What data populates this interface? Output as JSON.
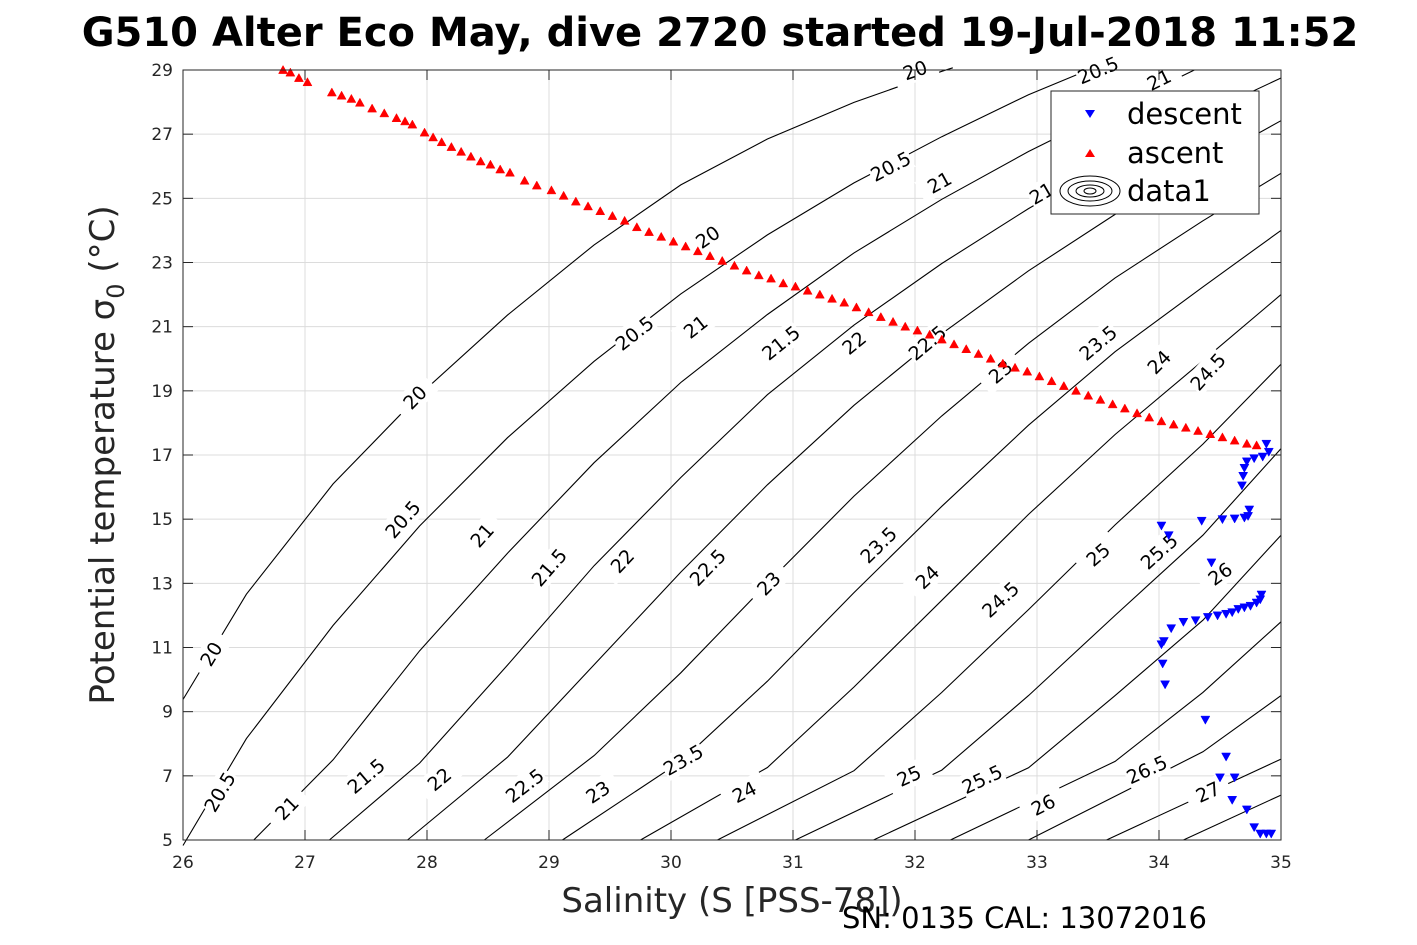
{
  "chart_data": {
    "type": "scatter",
    "title": "G510 Alter Eco May, dive 2720 started 19-Jul-2018 11:52",
    "xlabel": "Salinity (S [PSS-78])",
    "ylabel": "Potential temperature σ",
    "ylabel_subscript": "0",
    "ylabel_unit": " (°C)",
    "xlim": [
      26,
      35
    ],
    "ylim": [
      5,
      29
    ],
    "x_ticks": [
      26,
      27,
      28,
      29,
      30,
      31,
      32,
      33,
      34,
      35
    ],
    "y_ticks": [
      5,
      7,
      9,
      11,
      13,
      15,
      17,
      19,
      21,
      23,
      25,
      27,
      29
    ],
    "grid": true,
    "legend_position": "top-right",
    "legend": [
      "descent",
      "ascent",
      "data1"
    ],
    "series": [
      {
        "name": "descent",
        "marker": "triangle-down",
        "color": "#0000ff",
        "points": [
          [
            34.88,
            17.35
          ],
          [
            34.9,
            17.1
          ],
          [
            34.85,
            16.95
          ],
          [
            34.78,
            16.9
          ],
          [
            34.72,
            16.8
          ],
          [
            34.7,
            16.6
          ],
          [
            34.69,
            16.35
          ],
          [
            34.68,
            16.05
          ],
          [
            34.74,
            15.3
          ],
          [
            34.73,
            15.1
          ],
          [
            34.7,
            15.05
          ],
          [
            34.62,
            15.02
          ],
          [
            34.52,
            15.0
          ],
          [
            34.35,
            14.95
          ],
          [
            34.02,
            14.8
          ],
          [
            34.08,
            14.5
          ],
          [
            34.43,
            13.65
          ],
          [
            34.84,
            12.65
          ],
          [
            34.83,
            12.5
          ],
          [
            34.8,
            12.4
          ],
          [
            34.75,
            12.3
          ],
          [
            34.7,
            12.25
          ],
          [
            34.65,
            12.2
          ],
          [
            34.6,
            12.1
          ],
          [
            34.55,
            12.05
          ],
          [
            34.48,
            12.0
          ],
          [
            34.4,
            11.95
          ],
          [
            34.3,
            11.85
          ],
          [
            34.2,
            11.8
          ],
          [
            34.1,
            11.6
          ],
          [
            34.04,
            11.2
          ],
          [
            34.02,
            11.1
          ],
          [
            34.03,
            10.5
          ],
          [
            34.05,
            9.85
          ],
          [
            34.38,
            8.75
          ],
          [
            34.55,
            7.6
          ],
          [
            34.5,
            6.95
          ],
          [
            34.62,
            6.95
          ],
          [
            34.6,
            6.25
          ],
          [
            34.72,
            5.95
          ],
          [
            34.78,
            5.4
          ],
          [
            34.83,
            5.2
          ],
          [
            34.88,
            5.2
          ],
          [
            34.92,
            5.2
          ]
        ]
      },
      {
        "name": "ascent",
        "marker": "triangle-up",
        "color": "#ff0000",
        "points": [
          [
            26.82,
            29.0
          ],
          [
            26.88,
            28.92
          ],
          [
            26.95,
            28.75
          ],
          [
            27.02,
            28.62
          ],
          [
            27.22,
            28.3
          ],
          [
            27.3,
            28.2
          ],
          [
            27.38,
            28.1
          ],
          [
            27.45,
            27.98
          ],
          [
            27.55,
            27.8
          ],
          [
            27.65,
            27.65
          ],
          [
            27.75,
            27.5
          ],
          [
            27.82,
            27.4
          ],
          [
            27.88,
            27.3
          ],
          [
            27.98,
            27.05
          ],
          [
            28.05,
            26.9
          ],
          [
            28.12,
            26.75
          ],
          [
            28.2,
            26.6
          ],
          [
            28.28,
            26.45
          ],
          [
            28.36,
            26.3
          ],
          [
            28.44,
            26.15
          ],
          [
            28.52,
            26.05
          ],
          [
            28.6,
            25.9
          ],
          [
            28.68,
            25.8
          ],
          [
            28.8,
            25.55
          ],
          [
            28.9,
            25.4
          ],
          [
            29.02,
            25.25
          ],
          [
            29.12,
            25.08
          ],
          [
            29.22,
            24.9
          ],
          [
            29.32,
            24.75
          ],
          [
            29.42,
            24.6
          ],
          [
            29.52,
            24.45
          ],
          [
            29.62,
            24.3
          ],
          [
            29.72,
            24.1
          ],
          [
            29.82,
            23.95
          ],
          [
            29.92,
            23.8
          ],
          [
            30.02,
            23.65
          ],
          [
            30.12,
            23.5
          ],
          [
            30.22,
            23.35
          ],
          [
            30.32,
            23.2
          ],
          [
            30.42,
            23.05
          ],
          [
            30.52,
            22.9
          ],
          [
            30.62,
            22.75
          ],
          [
            30.72,
            22.6
          ],
          [
            30.82,
            22.5
          ],
          [
            30.92,
            22.35
          ],
          [
            31.02,
            22.25
          ],
          [
            31.12,
            22.12
          ],
          [
            31.22,
            22.0
          ],
          [
            31.32,
            21.87
          ],
          [
            31.42,
            21.75
          ],
          [
            31.52,
            21.6
          ],
          [
            31.62,
            21.45
          ],
          [
            31.72,
            21.3
          ],
          [
            31.82,
            21.15
          ],
          [
            31.92,
            21.0
          ],
          [
            32.02,
            20.88
          ],
          [
            32.12,
            20.75
          ],
          [
            32.22,
            20.6
          ],
          [
            32.32,
            20.45
          ],
          [
            32.42,
            20.3
          ],
          [
            32.52,
            20.15
          ],
          [
            32.62,
            20.0
          ],
          [
            32.72,
            19.85
          ],
          [
            32.82,
            19.72
          ],
          [
            32.92,
            19.6
          ],
          [
            33.02,
            19.45
          ],
          [
            33.12,
            19.3
          ],
          [
            33.22,
            19.15
          ],
          [
            33.32,
            19.0
          ],
          [
            33.42,
            18.85
          ],
          [
            33.52,
            18.72
          ],
          [
            33.62,
            18.58
          ],
          [
            33.72,
            18.45
          ],
          [
            33.82,
            18.3
          ],
          [
            33.92,
            18.17
          ],
          [
            34.02,
            18.05
          ],
          [
            34.12,
            17.95
          ],
          [
            34.22,
            17.85
          ],
          [
            34.32,
            17.75
          ],
          [
            34.42,
            17.65
          ],
          [
            34.52,
            17.55
          ],
          [
            34.62,
            17.45
          ],
          [
            34.72,
            17.35
          ],
          [
            34.8,
            17.3
          ]
        ]
      }
    ],
    "contours": [
      {
        "level": 20,
        "points": [
          [
            26.0,
            9.38
          ],
          [
            26.52,
            12.66
          ],
          [
            27.23,
            16.1
          ],
          [
            27.94,
            18.88
          ],
          [
            28.66,
            21.36
          ],
          [
            29.37,
            23.55
          ],
          [
            30.08,
            25.42
          ],
          [
            30.79,
            26.85
          ],
          [
            31.5,
            27.99
          ],
          [
            32.22,
            28.96
          ],
          [
            32.31,
            29.07
          ]
        ],
        "label_xs": [
          26.23,
          27.9,
          30.3,
          32.0
        ],
        "label_ys": [
          10.8,
          18.8,
          23.8,
          29.0
        ]
      },
      {
        "level": 20.5,
        "points": [
          [
            26.0,
            4.83
          ],
          [
            26.52,
            8.16
          ],
          [
            27.23,
            11.69
          ],
          [
            27.94,
            14.79
          ],
          [
            28.66,
            17.54
          ],
          [
            29.37,
            19.92
          ],
          [
            30.08,
            22.02
          ],
          [
            30.79,
            23.86
          ],
          [
            31.5,
            25.48
          ],
          [
            32.22,
            26.92
          ],
          [
            32.93,
            28.23
          ],
          [
            33.42,
            29.0
          ]
        ],
        "label_xs": [
          26.3,
          27.8,
          29.7,
          31.8,
          33.5
        ],
        "label_ys": [
          6.5,
          15.0,
          20.8,
          26.0,
          29.0
        ]
      },
      {
        "level": 21,
        "points": [
          [
            26.58,
            5.0
          ],
          [
            27.23,
            7.5
          ],
          [
            27.94,
            10.9
          ],
          [
            28.66,
            13.94
          ],
          [
            29.37,
            16.76
          ],
          [
            30.08,
            19.26
          ],
          [
            30.79,
            21.38
          ],
          [
            31.5,
            23.3
          ],
          [
            32.22,
            24.97
          ],
          [
            32.93,
            26.46
          ],
          [
            33.64,
            27.8
          ],
          [
            34.29,
            29.0
          ]
        ],
        "label_xs": [
          26.85,
          28.45,
          30.2,
          32.2,
          34.0
        ],
        "label_ys": [
          6.0,
          14.5,
          21.0,
          25.5,
          28.7
        ]
      },
      {
        "level": 21.5,
        "points": [
          [
            27.2,
            5.0
          ],
          [
            27.94,
            7.4
          ],
          [
            28.66,
            10.45
          ],
          [
            29.37,
            13.55
          ],
          [
            30.08,
            16.3
          ],
          [
            30.79,
            18.88
          ],
          [
            31.5,
            21.05
          ],
          [
            32.22,
            22.97
          ],
          [
            32.93,
            24.68
          ],
          [
            33.64,
            26.24
          ],
          [
            34.36,
            27.61
          ],
          [
            35.0,
            28.75
          ]
        ],
        "label_xs": [
          27.5,
          29.0,
          30.9,
          33.1
        ],
        "label_ys": [
          7.0,
          13.5,
          20.5,
          25.3
        ]
      },
      {
        "level": 22,
        "points": [
          [
            27.84,
            5.0
          ],
          [
            28.66,
            7.58
          ],
          [
            29.37,
            10.46
          ],
          [
            30.08,
            13.35
          ],
          [
            30.79,
            16.07
          ],
          [
            31.5,
            18.55
          ],
          [
            32.22,
            20.78
          ],
          [
            32.93,
            22.74
          ],
          [
            33.64,
            24.5
          ],
          [
            34.36,
            26.07
          ],
          [
            35.0,
            27.42
          ]
        ],
        "label_xs": [
          28.1,
          29.6,
          31.5
        ],
        "label_ys": [
          6.9,
          13.7,
          20.5
        ]
      },
      {
        "level": 22.5,
        "points": [
          [
            28.47,
            5.0
          ],
          [
            29.37,
            7.63
          ],
          [
            30.08,
            10.21
          ],
          [
            30.79,
            13.0
          ],
          [
            31.5,
            15.72
          ],
          [
            32.22,
            18.22
          ],
          [
            32.93,
            20.48
          ],
          [
            33.64,
            22.52
          ],
          [
            34.36,
            24.3
          ],
          [
            35.0,
            25.78
          ]
        ],
        "label_xs": [
          28.8,
          30.3,
          32.1
        ],
        "label_ys": [
          6.7,
          13.5,
          20.5
        ]
      },
      {
        "level": 23,
        "points": [
          [
            29.11,
            5.0
          ],
          [
            30.08,
            7.45
          ],
          [
            30.79,
            9.95
          ],
          [
            31.5,
            12.71
          ],
          [
            32.22,
            15.4
          ],
          [
            32.93,
            17.93
          ],
          [
            33.64,
            20.22
          ],
          [
            34.36,
            22.24
          ],
          [
            35.0,
            24.0
          ]
        ],
        "label_xs": [
          29.4,
          30.8,
          32.7
        ],
        "label_ys": [
          6.5,
          13.0,
          19.6
        ]
      },
      {
        "level": 23.5,
        "points": [
          [
            29.75,
            5.0
          ],
          [
            30.79,
            7.26
          ],
          [
            31.5,
            9.77
          ],
          [
            32.22,
            12.47
          ],
          [
            32.93,
            15.15
          ],
          [
            33.64,
            17.64
          ],
          [
            34.36,
            19.94
          ],
          [
            35.0,
            22.0
          ]
        ],
        "label_xs": [
          30.1,
          31.7,
          33.5
        ],
        "label_ys": [
          7.5,
          14.2,
          20.5
        ]
      },
      {
        "level": 24,
        "points": [
          [
            30.38,
            5.0
          ],
          [
            31.5,
            7.16
          ],
          [
            32.22,
            9.6
          ],
          [
            32.93,
            12.18
          ],
          [
            33.64,
            14.82
          ],
          [
            34.36,
            17.34
          ],
          [
            35.0,
            19.83
          ]
        ],
        "label_xs": [
          30.6,
          32.1,
          34.0
        ],
        "label_ys": [
          6.5,
          13.2,
          19.9
        ]
      },
      {
        "level": 24.5,
        "points": [
          [
            31.02,
            5.0
          ],
          [
            32.22,
            7.18
          ],
          [
            32.93,
            9.5
          ],
          [
            33.64,
            12.0
          ],
          [
            34.36,
            14.5
          ],
          [
            35.0,
            17.2
          ]
        ],
        "label_xs": [
          32.7,
          34.4
        ],
        "label_ys": [
          12.5,
          19.6
        ]
      },
      {
        "level": 25,
        "points": [
          [
            31.66,
            5.0
          ],
          [
            32.93,
            7.25
          ],
          [
            33.64,
            9.5
          ],
          [
            34.36,
            11.85
          ],
          [
            35.0,
            14.5
          ]
        ],
        "label_xs": [
          31.95,
          33.5
        ],
        "label_ys": [
          7.0,
          13.9
        ]
      },
      {
        "level": 25.5,
        "points": [
          [
            32.29,
            5.0
          ],
          [
            33.64,
            7.45
          ],
          [
            34.36,
            9.6
          ],
          [
            35.0,
            11.8
          ]
        ],
        "label_xs": [
          32.55,
          34.0
        ],
        "label_ys": [
          6.9,
          14.0
        ]
      },
      {
        "level": 26,
        "points": [
          [
            32.93,
            5.0
          ],
          [
            34.36,
            7.75
          ],
          [
            35.0,
            9.5
          ]
        ],
        "label_xs": [
          33.05,
          34.5
        ],
        "label_ys": [
          6.1,
          13.3
        ]
      },
      {
        "level": 26.5,
        "points": [
          [
            33.57,
            5.0
          ],
          [
            35.0,
            7.52
          ]
        ],
        "label_xs": [
          33.9
        ],
        "label_ys": [
          7.2
        ]
      },
      {
        "level": 27,
        "points": [
          [
            34.2,
            5.0
          ],
          [
            35.0,
            6.4
          ]
        ],
        "label_xs": [
          34.4
        ],
        "label_ys": [
          6.5
        ]
      }
    ]
  },
  "footer": "SN: 0135  CAL: 13072016"
}
